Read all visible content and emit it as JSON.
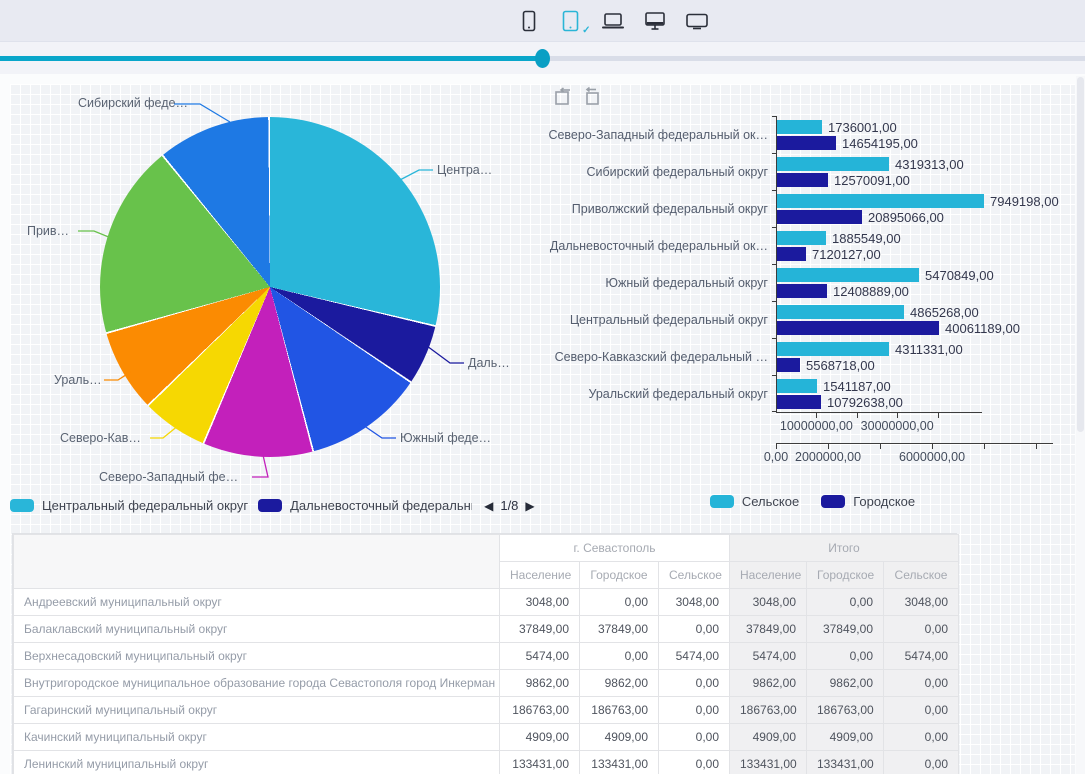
{
  "toolbar": {
    "devices": [
      {
        "name": "phone",
        "selected": false
      },
      {
        "name": "tablet",
        "selected": true
      },
      {
        "name": "laptop",
        "selected": false
      },
      {
        "name": "monitor",
        "selected": false
      },
      {
        "name": "tv",
        "selected": false
      }
    ]
  },
  "slider": {
    "value_percent": 50
  },
  "colors": {
    "accent": "#09a6ca",
    "rural": "#25b4d8",
    "urban": "#1b1a9e"
  },
  "chart_data": [
    {
      "type": "pie",
      "title": "",
      "legend_position": "bottom",
      "slices": [
        {
          "label": "Центральный федеральный округ",
          "callout": "Центра…",
          "value": 44926457,
          "color": "#29b6d9"
        },
        {
          "label": "Дальневосточный федеральный округ",
          "callout": "Даль…",
          "value": 9005676,
          "color": "#1b1a9e"
        },
        {
          "label": "Южный федеральный округ",
          "callout": "Южный феде…",
          "value": 17879738,
          "color": "#2155e4"
        },
        {
          "label": "Северо-Западный федеральный округ",
          "callout": "Северо-Западный фе…",
          "value": 16390196,
          "color": "#c320bb"
        },
        {
          "label": "Северо-Кавказский федеральный округ",
          "callout": "Северо-Кав…",
          "value": 9880049,
          "color": "#f6d802"
        },
        {
          "label": "Уральский федеральный округ",
          "callout": "Ураль…",
          "value": 12333825,
          "color": "#fb8b02"
        },
        {
          "label": "Приволжский федеральный округ",
          "callout": "Прив…",
          "value": 28844264,
          "color": "#68c24b"
        },
        {
          "label": "Сибирский федеральный округ",
          "callout": "Сибирский феде…",
          "value": 16889404,
          "color": "#1e79e4"
        }
      ]
    },
    {
      "type": "bar",
      "orientation": "horizontal",
      "categories": [
        "Северо-Западный федеральный ок…",
        "Сибирский федеральный округ",
        "Приволжский федеральный округ",
        "Дальневосточный федеральный ок…",
        "Южный федеральный округ",
        "Центральный федеральный округ",
        "Северо-Кавказский федеральный …",
        "Уральский федеральный округ"
      ],
      "series": [
        {
          "name": "Сельское",
          "color": "#25b4d8",
          "values": [
            1736001,
            4319313,
            7949198,
            1885549,
            5470849,
            4865268,
            4311331,
            1541187
          ],
          "axis": {
            "max": 10650000,
            "ticks": [
              {
                "value": 0,
                "label": "0,00"
              },
              {
                "value": 2000000,
                "label": "2000000,00"
              },
              {
                "value": 4000000,
                "label": ""
              },
              {
                "value": 6000000,
                "label": "6000000,00"
              },
              {
                "value": 8000000,
                "label": ""
              },
              {
                "value": 10000000,
                "label": ""
              }
            ]
          }
        },
        {
          "name": "Городское",
          "color": "#1b1a9e",
          "values": [
            14654195,
            12570091,
            20895066,
            7120127,
            12408889,
            40061189,
            5568718,
            10792638
          ],
          "axis": {
            "max": 51000000,
            "ticks": [
              {
                "value": 10000000,
                "label": "10000000,00"
              },
              {
                "value": 20000000,
                "label": ""
              },
              {
                "value": 30000000,
                "label": "30000000,00"
              },
              {
                "value": 40000000,
                "label": ""
              }
            ]
          }
        }
      ],
      "legend_position": "bottom"
    }
  ],
  "pie_legend": {
    "visible_items": [
      {
        "label": "Центральный федеральный округ",
        "color": "#29b6d9"
      },
      {
        "label": "Дальневосточный федеральный округ",
        "color": "#1b1a9e"
      }
    ],
    "page": "1/8"
  },
  "bar_legend": {
    "items": [
      {
        "label": "Сельское",
        "color": "#25b4d8"
      },
      {
        "label": "Городское",
        "color": "#1b1a9e"
      }
    ]
  },
  "table": {
    "column_groups": [
      {
        "label": "г. Севастополь"
      },
      {
        "label": "Итого"
      }
    ],
    "columns": [
      "Население",
      "Городское",
      "Сельское",
      "Население",
      "Городское",
      "Сельское"
    ],
    "rows": [
      {
        "name": "Андреевский муниципальный округ",
        "values": [
          "3048,00",
          "0,00",
          "3048,00",
          "3048,00",
          "0,00",
          "3048,00"
        ]
      },
      {
        "name": "Балаклавский муниципальный округ",
        "values": [
          "37849,00",
          "37849,00",
          "0,00",
          "37849,00",
          "37849,00",
          "0,00"
        ]
      },
      {
        "name": "Верхнесадовский муниципальный округ",
        "values": [
          "5474,00",
          "0,00",
          "5474,00",
          "5474,00",
          "0,00",
          "5474,00"
        ]
      },
      {
        "name": "Внутригородское муниципальное образование города Севастополя город Инкерман",
        "values": [
          "9862,00",
          "9862,00",
          "0,00",
          "9862,00",
          "9862,00",
          "0,00"
        ]
      },
      {
        "name": "Гагаринский муниципальный округ",
        "values": [
          "186763,00",
          "186763,00",
          "0,00",
          "186763,00",
          "186763,00",
          "0,00"
        ]
      },
      {
        "name": "Качинский муниципальный округ",
        "values": [
          "4909,00",
          "4909,00",
          "0,00",
          "4909,00",
          "4909,00",
          "0,00"
        ]
      },
      {
        "name": "Ленинский муниципальный округ",
        "values": [
          "133431,00",
          "133431,00",
          "0,00",
          "133431,00",
          "133431,00",
          "0,00"
        ]
      }
    ]
  }
}
